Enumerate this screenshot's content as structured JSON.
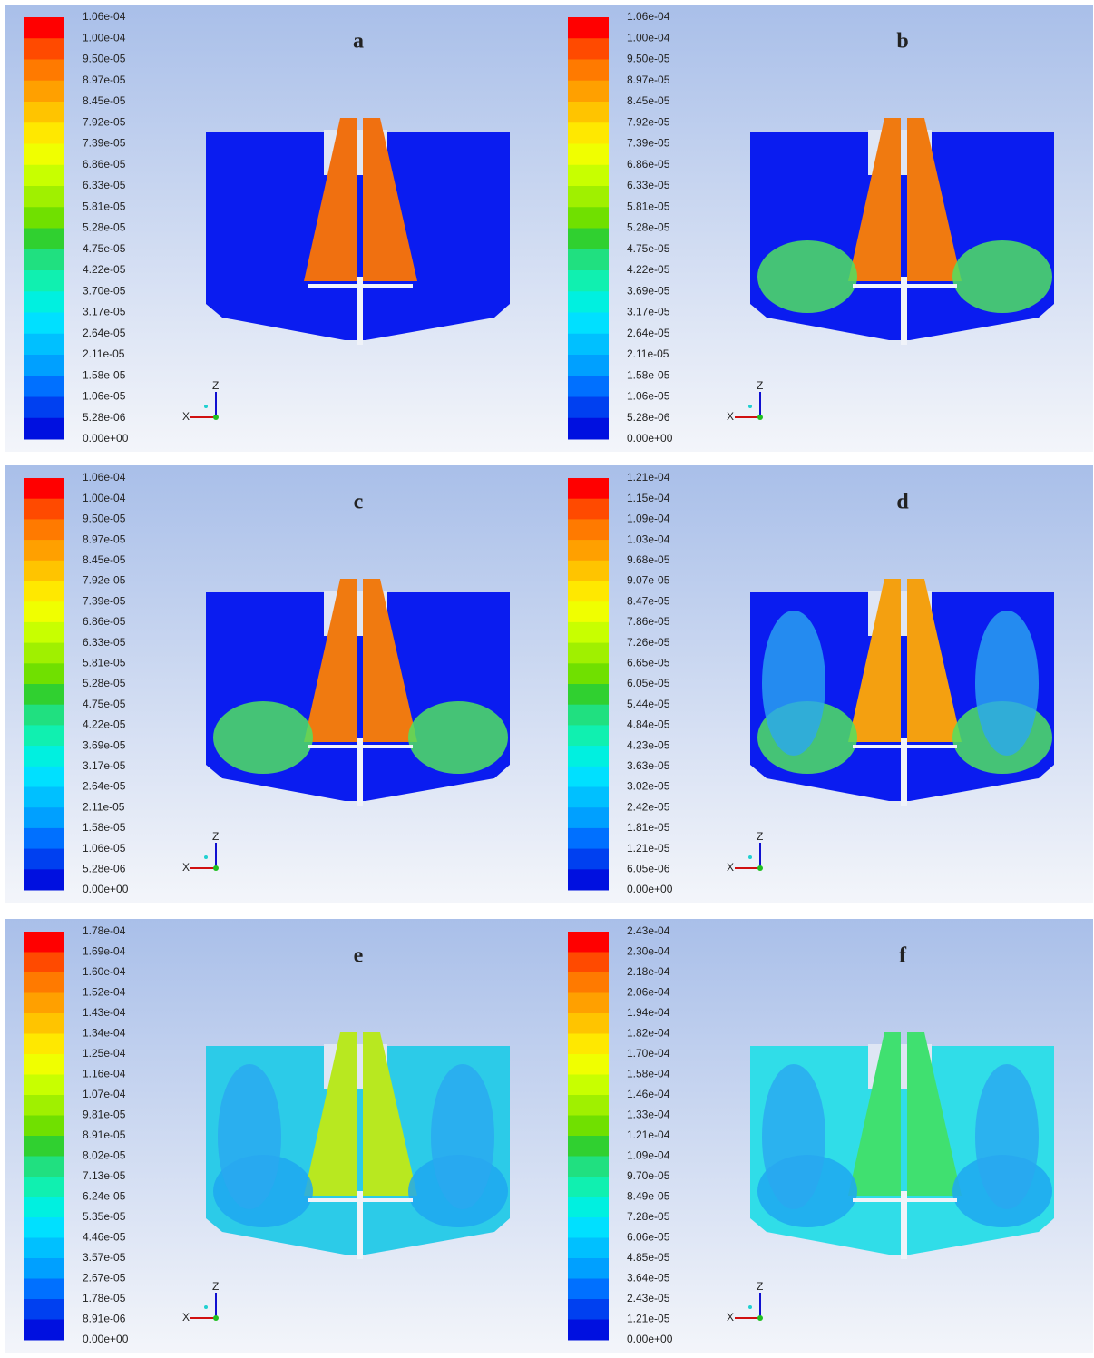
{
  "axes": {
    "z": "Z",
    "x": "X"
  },
  "panels": [
    {
      "label": "a",
      "legend": [
        "1.06e-04",
        "1.00e-04",
        "9.50e-05",
        "8.97e-05",
        "8.45e-05",
        "7.92e-05",
        "7.39e-05",
        "6.86e-05",
        "6.33e-05",
        "5.81e-05",
        "5.28e-05",
        "4.75e-05",
        "4.22e-05",
        "3.70e-05",
        "3.17e-05",
        "2.64e-05",
        "2.11e-05",
        "1.58e-05",
        "1.06e-05",
        "5.28e-06",
        "0.00e+00"
      ]
    },
    {
      "label": "b",
      "legend": [
        "1.06e-04",
        "1.00e-04",
        "9.50e-05",
        "8.97e-05",
        "8.45e-05",
        "7.92e-05",
        "7.39e-05",
        "6.86e-05",
        "6.33e-05",
        "5.81e-05",
        "5.28e-05",
        "4.75e-05",
        "4.22e-05",
        "3.69e-05",
        "3.17e-05",
        "2.64e-05",
        "2.11e-05",
        "1.58e-05",
        "1.06e-05",
        "5.28e-06",
        "0.00e+00"
      ]
    },
    {
      "label": "c",
      "legend": [
        "1.06e-04",
        "1.00e-04",
        "9.50e-05",
        "8.97e-05",
        "8.45e-05",
        "7.92e-05",
        "7.39e-05",
        "6.86e-05",
        "6.33e-05",
        "5.81e-05",
        "5.28e-05",
        "4.75e-05",
        "4.22e-05",
        "3.69e-05",
        "3.17e-05",
        "2.64e-05",
        "2.11e-05",
        "1.58e-05",
        "1.06e-05",
        "5.28e-06",
        "0.00e+00"
      ]
    },
    {
      "label": "d",
      "legend": [
        "1.21e-04",
        "1.15e-04",
        "1.09e-04",
        "1.03e-04",
        "9.68e-05",
        "9.07e-05",
        "8.47e-05",
        "7.86e-05",
        "7.26e-05",
        "6.65e-05",
        "6.05e-05",
        "5.44e-05",
        "4.84e-05",
        "4.23e-05",
        "3.63e-05",
        "3.02e-05",
        "2.42e-05",
        "1.81e-05",
        "1.21e-05",
        "6.05e-06",
        "0.00e+00"
      ]
    },
    {
      "label": "e",
      "legend": [
        "1.78e-04",
        "1.69e-04",
        "1.60e-04",
        "1.52e-04",
        "1.43e-04",
        "1.34e-04",
        "1.25e-04",
        "1.16e-04",
        "1.07e-04",
        "9.81e-05",
        "8.91e-05",
        "8.02e-05",
        "7.13e-05",
        "6.24e-05",
        "5.35e-05",
        "4.46e-05",
        "3.57e-05",
        "2.67e-05",
        "1.78e-05",
        "8.91e-06",
        "0.00e+00"
      ]
    },
    {
      "label": "f",
      "legend": [
        "2.43e-04",
        "2.30e-04",
        "2.18e-04",
        "2.06e-04",
        "1.94e-04",
        "1.82e-04",
        "1.70e-04",
        "1.58e-04",
        "1.46e-04",
        "1.33e-04",
        "1.21e-04",
        "1.09e-04",
        "9.70e-05",
        "8.49e-05",
        "7.28e-05",
        "6.06e-05",
        "4.85e-05",
        "3.64e-05",
        "2.43e-05",
        "1.21e-05",
        "0.00e+00"
      ]
    }
  ]
}
